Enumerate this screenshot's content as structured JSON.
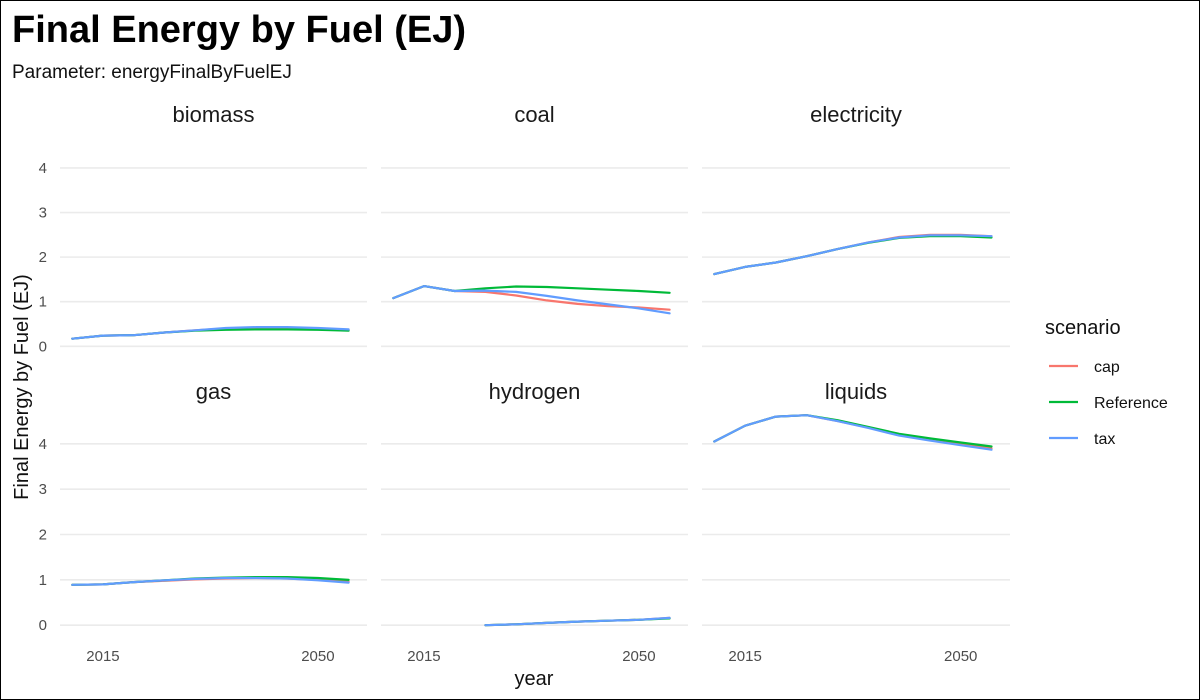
{
  "chart_data": {
    "type": "line",
    "title": "Final Energy by Fuel (EJ)",
    "subtitle": "Parameter: energyFinalByFuelEJ",
    "xlabel": "year",
    "ylabel": "Final Energy by Fuel (EJ)",
    "x_ticks": [
      2015,
      2050
    ],
    "y_ticks": [
      0,
      1,
      2,
      3,
      4
    ],
    "xlim": [
      2008,
      2058
    ],
    "facet_scales": "free_y",
    "grid": true,
    "legend": {
      "title": "scenario",
      "position": "right",
      "entries": [
        {
          "name": "cap",
          "color": "#F8766D"
        },
        {
          "name": "Reference",
          "color": "#00BA38"
        },
        {
          "name": "tax",
          "color": "#619CFF"
        }
      ]
    },
    "facets": [
      {
        "name": "biomass",
        "ylim": [
          -0.15,
          4.2
        ],
        "x": [
          2010,
          2015,
          2020,
          2025,
          2030,
          2035,
          2040,
          2045,
          2050,
          2055
        ],
        "series": [
          {
            "name": "cap",
            "values": [
              0.17,
              0.24,
              0.25,
              0.31,
              0.36,
              0.4,
              0.42,
              0.42,
              0.4,
              0.37
            ]
          },
          {
            "name": "Reference",
            "values": [
              0.17,
              0.24,
              0.25,
              0.31,
              0.35,
              0.37,
              0.38,
              0.38,
              0.37,
              0.35
            ]
          },
          {
            "name": "tax",
            "values": [
              0.17,
              0.24,
              0.25,
              0.31,
              0.36,
              0.41,
              0.43,
              0.43,
              0.41,
              0.38
            ]
          }
        ]
      },
      {
        "name": "coal",
        "ylim": [
          -0.15,
          4.2
        ],
        "x": [
          2010,
          2015,
          2020,
          2025,
          2030,
          2035,
          2040,
          2045,
          2050,
          2055
        ],
        "series": [
          {
            "name": "cap",
            "values": [
              1.08,
              1.35,
              1.24,
              1.22,
              1.14,
              1.03,
              0.95,
              0.9,
              0.87,
              0.82
            ]
          },
          {
            "name": "Reference",
            "values": [
              1.08,
              1.35,
              1.24,
              1.3,
              1.34,
              1.33,
              1.3,
              1.27,
              1.24,
              1.2
            ]
          },
          {
            "name": "tax",
            "values": [
              1.08,
              1.35,
              1.24,
              1.25,
              1.22,
              1.13,
              1.03,
              0.94,
              0.85,
              0.74
            ]
          }
        ]
      },
      {
        "name": "electricity",
        "ylim": [
          -0.15,
          4.2
        ],
        "x": [
          2010,
          2015,
          2020,
          2025,
          2030,
          2035,
          2040,
          2045,
          2050,
          2055
        ],
        "series": [
          {
            "name": "cap",
            "values": [
              1.62,
              1.78,
              1.88,
              2.02,
              2.18,
              2.33,
              2.45,
              2.5,
              2.5,
              2.47
            ]
          },
          {
            "name": "Reference",
            "values": [
              1.62,
              1.78,
              1.88,
              2.02,
              2.18,
              2.32,
              2.43,
              2.47,
              2.47,
              2.44
            ]
          },
          {
            "name": "tax",
            "values": [
              1.62,
              1.78,
              1.88,
              2.02,
              2.18,
              2.33,
              2.44,
              2.49,
              2.49,
              2.47
            ]
          }
        ]
      },
      {
        "name": "gas",
        "ylim": [
          -0.15,
          4.9
        ],
        "x": [
          2010,
          2015,
          2020,
          2025,
          2030,
          2035,
          2040,
          2045,
          2050,
          2055
        ],
        "series": [
          {
            "name": "cap",
            "values": [
              0.89,
              0.9,
              0.95,
              0.98,
              1.01,
              1.03,
              1.04,
              1.03,
              1.0,
              0.96
            ]
          },
          {
            "name": "Reference",
            "values": [
              0.89,
              0.9,
              0.95,
              0.99,
              1.03,
              1.05,
              1.06,
              1.06,
              1.04,
              1.0
            ]
          },
          {
            "name": "tax",
            "values": [
              0.89,
              0.9,
              0.95,
              0.99,
              1.02,
              1.04,
              1.04,
              1.03,
              0.99,
              0.94
            ]
          }
        ]
      },
      {
        "name": "hydrogen",
        "ylim": [
          -0.15,
          4.9
        ],
        "x": [
          2025,
          2030,
          2035,
          2040,
          2045,
          2050,
          2055
        ],
        "series": [
          {
            "name": "cap",
            "values": [
              0.0,
              0.02,
              0.05,
              0.08,
              0.1,
              0.12,
              0.16
            ]
          },
          {
            "name": "Reference",
            "values": [
              0.0,
              0.02,
              0.05,
              0.08,
              0.1,
              0.12,
              0.15
            ]
          },
          {
            "name": "tax",
            "values": [
              0.0,
              0.02,
              0.05,
              0.08,
              0.1,
              0.12,
              0.16
            ]
          }
        ]
      },
      {
        "name": "liquids",
        "ylim": [
          -0.15,
          4.9
        ],
        "x": [
          2010,
          2015,
          2020,
          2025,
          2030,
          2035,
          2040,
          2045,
          2050,
          2055
        ],
        "series": [
          {
            "name": "cap",
            "values": [
              4.05,
              4.4,
              4.6,
              4.63,
              4.5,
              4.36,
              4.2,
              4.1,
              4.0,
              3.9
            ]
          },
          {
            "name": "Reference",
            "values": [
              4.05,
              4.4,
              4.6,
              4.63,
              4.52,
              4.37,
              4.22,
              4.12,
              4.03,
              3.94
            ]
          },
          {
            "name": "tax",
            "values": [
              4.05,
              4.4,
              4.6,
              4.63,
              4.5,
              4.35,
              4.18,
              4.07,
              3.97,
              3.87
            ]
          }
        ]
      }
    ]
  }
}
